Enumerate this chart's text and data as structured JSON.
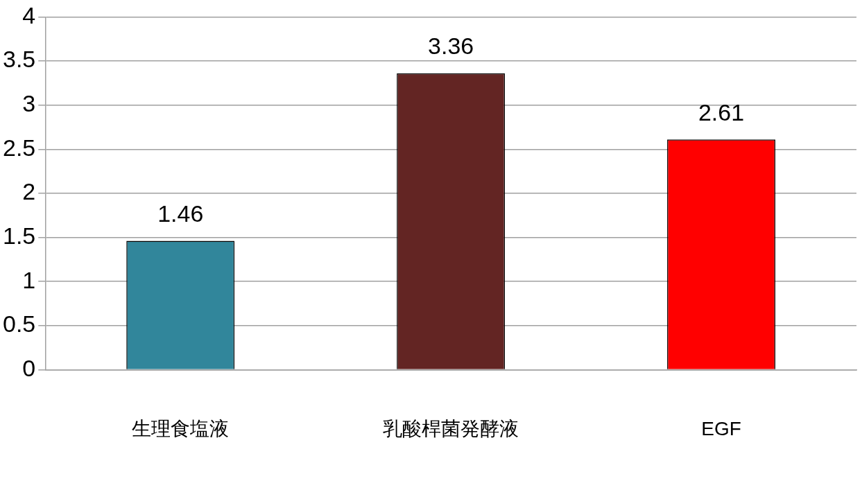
{
  "chart_data": {
    "type": "bar",
    "categories": [
      "生理食塩液",
      "乳酸桿菌発酵液",
      "EGF"
    ],
    "values": [
      1.46,
      3.36,
      2.61
    ],
    "colors": [
      "#31869b",
      "#632523",
      "#ff0000"
    ],
    "ylim": [
      0,
      4
    ],
    "yticks": [
      0,
      0.5,
      1,
      1.5,
      2,
      2.5,
      3,
      3.5,
      4
    ],
    "grid": "y",
    "legend": false,
    "data_labels": true
  }
}
